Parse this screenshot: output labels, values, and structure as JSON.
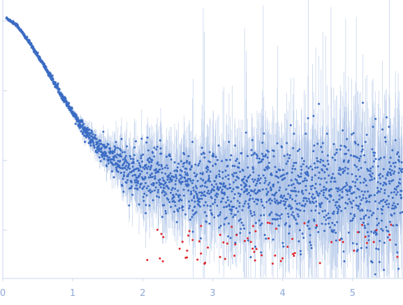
{
  "chart_data": {
    "type": "scatter",
    "title": "",
    "xlabel": "",
    "ylabel": "",
    "xlim": [
      0,
      5.72
    ],
    "grid": false,
    "legend": "none",
    "x_ticks": [
      0,
      1,
      2,
      3,
      4,
      5
    ],
    "x_tick_labels": [
      "0",
      "1",
      "2",
      "3",
      "4",
      "5"
    ],
    "y_tick_marks": 4,
    "colors": {
      "points": "#3b6cc4",
      "error_bars": "#aac0e6",
      "outliers": "#e0262b",
      "first_point": "#c8d4ee",
      "axis": "#c9d6ee",
      "tick_labels": "#8fa8d8"
    },
    "series": [
      {
        "style": "blue points with light-blue vertical error bars",
        "trend": {
          "x": [
            0.05,
            0.2,
            0.4,
            0.6,
            0.8,
            1.0,
            1.2,
            1.4,
            1.6,
            1.8,
            2.0,
            2.5,
            3.0,
            3.5,
            4.0,
            4.5,
            5.0,
            5.5,
            5.72
          ],
          "y": [
            0.935,
            0.91,
            0.84,
            0.76,
            0.675,
            0.595,
            0.52,
            0.46,
            0.42,
            0.39,
            0.36,
            0.335,
            0.325,
            0.32,
            0.315,
            0.31,
            0.31,
            0.31,
            0.31
          ]
        },
        "spread": {
          "x": [
            0.05,
            1.0,
            1.4,
            1.8,
            2.2,
            3.0,
            4.0,
            5.0,
            5.72
          ],
          "y": [
            0.002,
            0.006,
            0.02,
            0.045,
            0.06,
            0.07,
            0.085,
            0.1,
            0.11
          ]
        }
      },
      {
        "style": "red points (negative / below-threshold values)",
        "x_range": [
          2.0,
          5.72
        ],
        "y_range": [
          0.05,
          0.2
        ]
      }
    ]
  }
}
